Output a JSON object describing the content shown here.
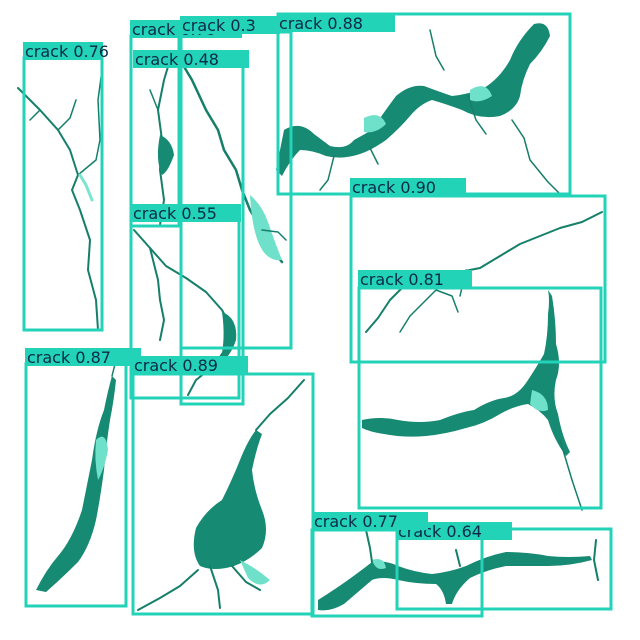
{
  "image": {
    "box_color": "#22d3b8",
    "label_text_color": "#0b2a48",
    "crack_color": "#178a73",
    "crack_highlight_color": "#6fe0c9"
  },
  "detections": [
    {
      "id": "d1",
      "label": "crack 0.76"
    },
    {
      "id": "d2",
      "label": "crack 0.70"
    },
    {
      "id": "d3",
      "label": "crack 0.48"
    },
    {
      "id": "d4",
      "label": "crack 0.3"
    },
    {
      "id": "d5",
      "label": "crack 0.88"
    },
    {
      "id": "d6",
      "label": "crack 0.55"
    },
    {
      "id": "d7",
      "label": "crack 0.90"
    },
    {
      "id": "d8",
      "label": "crack 0.81"
    },
    {
      "id": "d9",
      "label": "crack 0.87"
    },
    {
      "id": "d10",
      "label": "crack 0.89"
    },
    {
      "id": "d11",
      "label": "crack 0.77"
    },
    {
      "id": "d12",
      "label": "crack 0.64"
    }
  ]
}
